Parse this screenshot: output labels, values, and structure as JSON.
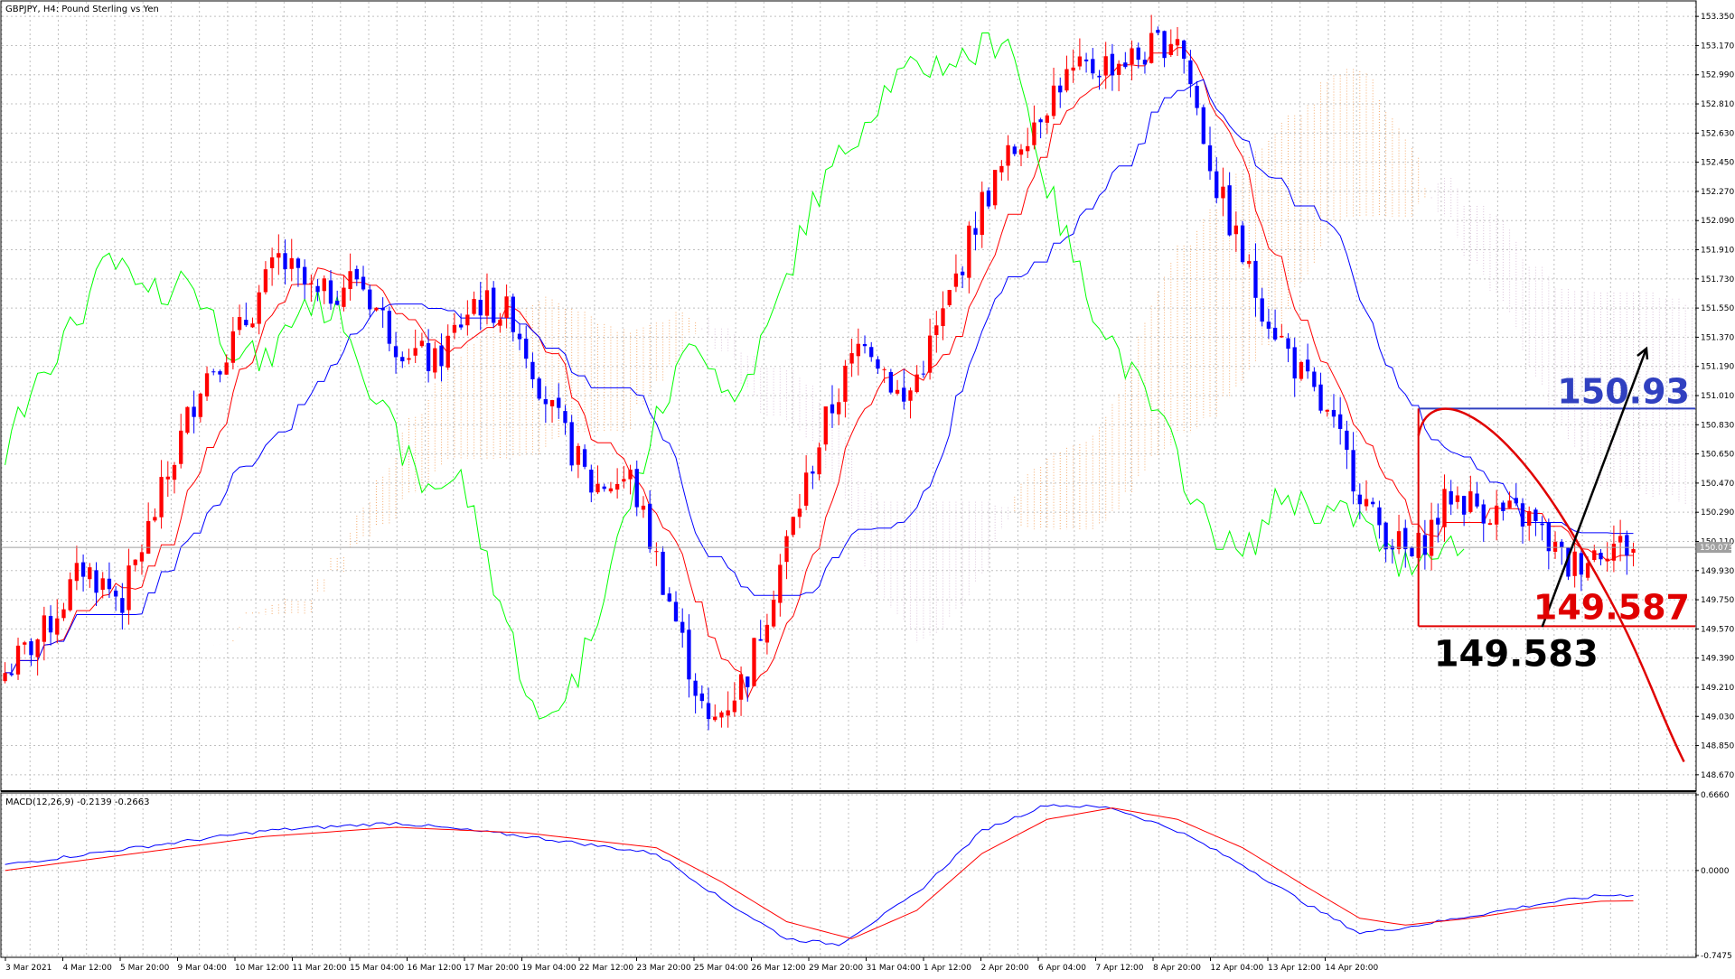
{
  "window": {
    "main_label": "GBPJPY, H4:  Pound Sterling vs Yen",
    "macd_label": "MACD(12,26,9) -0.2139 -0.2663"
  },
  "colors": {
    "bull": "#ff0000",
    "bear": "#0000ff",
    "tenkan": "#ff0000",
    "kijun": "#0000ff",
    "chikou": "#00ff00",
    "kumo_up": "#f4a460",
    "kumo_down": "#d8bfd8",
    "macd": "#0000ff",
    "signal": "#ff0000",
    "grid": "#c0c0c0",
    "level_high": "#3040c0",
    "level_low": "#e00000",
    "price_line": "#a0a0a0"
  },
  "annotations": {
    "resistance_value": "150.93",
    "support_value": "149.587",
    "low_value": "149.583",
    "current_price": "150.073"
  },
  "chart_data": [
    {
      "type": "candlestick",
      "title": "GBPJPY, H4:  Pound Sterling vs Yen",
      "ylim": [
        148.58,
        153.44
      ],
      "y_ticks": [
        "153.350",
        "153.170",
        "152.990",
        "152.810",
        "152.630",
        "152.450",
        "152.270",
        "152.090",
        "151.910",
        "151.730",
        "151.550",
        "151.370",
        "151.190",
        "151.010",
        "150.830",
        "150.650",
        "150.470",
        "150.290",
        "150.110",
        "149.930",
        "149.750",
        "149.570",
        "149.390",
        "149.210",
        "149.030",
        "148.850",
        "148.670"
      ],
      "x_ticks": [
        "3 Mar 2021",
        "4 Mar 12:00",
        "5 Mar 20:00",
        "9 Mar 04:00",
        "10 Mar 12:00",
        "11 Mar 20:00",
        "15 Mar 04:00",
        "16 Mar 12:00",
        "17 Mar 20:00",
        "19 Mar 04:00",
        "22 Mar 12:00",
        "23 Mar 20:00",
        "25 Mar 04:00",
        "26 Mar 12:00",
        "29 Mar 20:00",
        "31 Mar 04:00",
        "1 Apr 12:00",
        "2 Apr 20:00",
        "6 Apr 04:00",
        "7 Apr 12:00",
        "8 Apr 20:00",
        "12 Apr 04:00",
        "13 Apr 12:00",
        "14 Apr 20:00"
      ],
      "close_anchors": [
        [
          0,
          149.3
        ],
        [
          6,
          149.55
        ],
        [
          12,
          149.95
        ],
        [
          18,
          149.75
        ],
        [
          24,
          150.4
        ],
        [
          30,
          151.1
        ],
        [
          36,
          151.4
        ],
        [
          42,
          151.85
        ],
        [
          48,
          151.6
        ],
        [
          54,
          151.75
        ],
        [
          60,
          151.35
        ],
        [
          66,
          151.2
        ],
        [
          72,
          151.6
        ],
        [
          78,
          151.5
        ],
        [
          84,
          150.9
        ],
        [
          90,
          150.45
        ],
        [
          96,
          150.5
        ],
        [
          102,
          149.75
        ],
        [
          108,
          148.95
        ],
        [
          114,
          149.3
        ],
        [
          120,
          150.1
        ],
        [
          126,
          150.85
        ],
        [
          132,
          151.4
        ],
        [
          138,
          150.95
        ],
        [
          144,
          151.5
        ],
        [
          150,
          152.2
        ],
        [
          156,
          152.6
        ],
        [
          162,
          152.95
        ],
        [
          168,
          153.05
        ],
        [
          174,
          153.1
        ],
        [
          180,
          153.25
        ],
        [
          186,
          152.3
        ],
        [
          192,
          151.65
        ],
        [
          198,
          151.2
        ],
        [
          204,
          150.8
        ],
        [
          210,
          150.25
        ],
        [
          216,
          150.0
        ],
        [
          222,
          150.4
        ],
        [
          228,
          150.3
        ],
        [
          234,
          150.25
        ],
        [
          240,
          149.95
        ],
        [
          246,
          150.1
        ],
        [
          250,
          150.07
        ]
      ],
      "series_names_visible": [],
      "levels": [
        {
          "value": 150.93,
          "label": "150.93"
        },
        {
          "value": 149.587,
          "label": "149.587"
        }
      ],
      "marked_low": {
        "value": 149.583,
        "label": "149.583"
      },
      "current_price": {
        "value": 150.073,
        "label": "150.073"
      }
    },
    {
      "type": "line",
      "title": "MACD(12,26,9) -0.2139 -0.2663",
      "ylim": [
        -0.7475,
        0.666
      ],
      "y_ticks": [
        "0.6660",
        "0.0000",
        "-0.7475"
      ],
      "series": [
        {
          "values_anchor": [
            [
              0,
              0.05
            ],
            [
              20,
              0.2
            ],
            [
              40,
              0.35
            ],
            [
              60,
              0.42
            ],
            [
              80,
              0.3
            ],
            [
              100,
              0.15
            ],
            [
              110,
              -0.25
            ],
            [
              120,
              -0.6
            ],
            [
              128,
              -0.65
            ],
            [
              140,
              -0.2
            ],
            [
              150,
              0.35
            ],
            [
              160,
              0.58
            ],
            [
              170,
              0.55
            ],
            [
              180,
              0.35
            ],
            [
              190,
              0.05
            ],
            [
              200,
              -0.3
            ],
            [
              208,
              -0.55
            ],
            [
              215,
              -0.5
            ],
            [
              225,
              -0.4
            ],
            [
              235,
              -0.3
            ],
            [
              245,
              -0.22
            ],
            [
              250,
              -0.2139
            ]
          ]
        },
        {
          "values_anchor": [
            [
              0,
              0.0
            ],
            [
              20,
              0.15
            ],
            [
              40,
              0.3
            ],
            [
              60,
              0.38
            ],
            [
              80,
              0.33
            ],
            [
              100,
              0.2
            ],
            [
              110,
              -0.1
            ],
            [
              120,
              -0.45
            ],
            [
              130,
              -0.6
            ],
            [
              140,
              -0.35
            ],
            [
              150,
              0.15
            ],
            [
              160,
              0.45
            ],
            [
              170,
              0.55
            ],
            [
              180,
              0.45
            ],
            [
              190,
              0.2
            ],
            [
              200,
              -0.15
            ],
            [
              208,
              -0.42
            ],
            [
              215,
              -0.48
            ],
            [
              225,
              -0.42
            ],
            [
              235,
              -0.33
            ],
            [
              245,
              -0.27
            ],
            [
              250,
              -0.2663
            ]
          ]
        }
      ]
    }
  ]
}
